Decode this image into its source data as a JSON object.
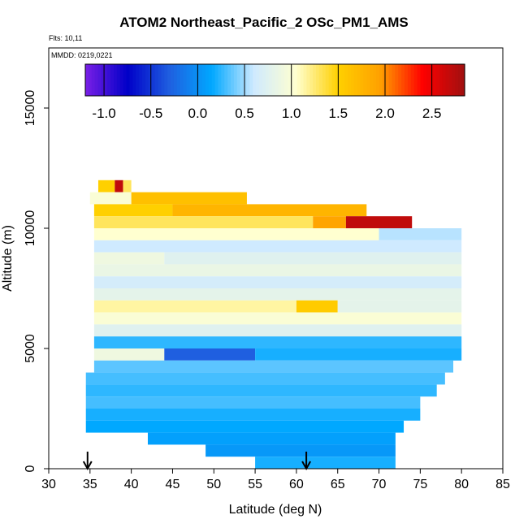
{
  "chart_data": {
    "type": "heatmap",
    "title": "ATOM2 Northeast_Pacific_2 OSc_PM1_AMS",
    "flights_label": "Flts: 10,11",
    "dates_label": "MMDD: 0219,0221",
    "xlabel": "Latitude (deg N)",
    "ylabel": "Altitude (m)",
    "xlim": [
      30,
      85
    ],
    "ylim": [
      0,
      17500
    ],
    "xticks": [
      30,
      35,
      40,
      45,
      50,
      55,
      60,
      65,
      70,
      75,
      80,
      85
    ],
    "yticks": [
      0,
      5000,
      10000,
      15000
    ],
    "colorbar": {
      "range": [
        -1.2,
        2.85
      ],
      "ticks": [
        -1.0,
        -0.5,
        0.0,
        0.5,
        1.0,
        1.5,
        2.0,
        2.5
      ],
      "tick_labels": [
        "-1.0",
        "-0.5",
        "0.0",
        "0.5",
        "1.0",
        "1.5",
        "2.0",
        "2.5"
      ],
      "colors": [
        "#7a1fe6",
        "#0000c8",
        "#1f5fe0",
        "#00a8ff",
        "#cfeaff",
        "#ffffd0",
        "#ffd000",
        "#ffa000",
        "#ff0000",
        "#a01010"
      ]
    },
    "flight_markers_lat": [
      34.7,
      61.2
    ],
    "grid": false,
    "bands": [
      {
        "alt": [
          11500,
          12000
        ],
        "segments": [
          [
            36,
            38,
            1.5
          ],
          [
            38,
            39,
            2.7
          ],
          [
            39,
            40,
            1.3
          ]
        ]
      },
      {
        "alt": [
          11000,
          11500
        ],
        "segments": [
          [
            35,
            40,
            1.0
          ],
          [
            40,
            54,
            1.65
          ]
        ]
      },
      {
        "alt": [
          10500,
          11000
        ],
        "segments": [
          [
            35.5,
            45,
            1.5
          ],
          [
            45,
            68.5,
            1.75
          ]
        ]
      },
      {
        "alt": [
          10000,
          10500
        ],
        "segments": [
          [
            35.5,
            62,
            1.3
          ],
          [
            62,
            66,
            1.9
          ],
          [
            66,
            74,
            2.7
          ]
        ]
      },
      {
        "alt": [
          9500,
          10000
        ],
        "segments": [
          [
            35.5,
            70,
            1.05
          ],
          [
            70,
            80,
            0.55
          ]
        ]
      },
      {
        "alt": [
          9000,
          9500
        ],
        "segments": [
          [
            35.5,
            80,
            0.6
          ]
        ]
      },
      {
        "alt": [
          8500,
          9000
        ],
        "segments": [
          [
            35.5,
            44,
            0.9
          ],
          [
            44,
            80,
            0.75
          ]
        ]
      },
      {
        "alt": [
          8000,
          8500
        ],
        "segments": [
          [
            35.5,
            80,
            0.85
          ]
        ]
      },
      {
        "alt": [
          7500,
          8000
        ],
        "segments": [
          [
            35.5,
            80,
            0.65
          ]
        ]
      },
      {
        "alt": [
          7000,
          7500
        ],
        "segments": [
          [
            35.5,
            80,
            0.8
          ]
        ]
      },
      {
        "alt": [
          6500,
          7000
        ],
        "segments": [
          [
            35.5,
            60,
            1.15
          ],
          [
            60,
            65,
            1.55
          ],
          [
            65,
            80,
            0.8
          ]
        ]
      },
      {
        "alt": [
          6000,
          6500
        ],
        "segments": [
          [
            35.5,
            80,
            1.0
          ]
        ]
      },
      {
        "alt": [
          5500,
          6000
        ],
        "segments": [
          [
            35.5,
            80,
            0.75
          ]
        ]
      },
      {
        "alt": [
          5000,
          5500
        ],
        "segments": [
          [
            35.5,
            80,
            0.25
          ]
        ]
      },
      {
        "alt": [
          4500,
          5000
        ],
        "segments": [
          [
            35.5,
            44,
            0.9
          ],
          [
            44,
            55,
            -0.3
          ],
          [
            55,
            80,
            0.2
          ]
        ]
      },
      {
        "alt": [
          4000,
          4500
        ],
        "segments": [
          [
            35.5,
            79,
            0.35
          ]
        ]
      },
      {
        "alt": [
          3500,
          4000
        ],
        "segments": [
          [
            34.5,
            78,
            0.3
          ]
        ]
      },
      {
        "alt": [
          3000,
          3500
        ],
        "segments": [
          [
            34.5,
            77,
            0.25
          ]
        ]
      },
      {
        "alt": [
          2500,
          3000
        ],
        "segments": [
          [
            34.5,
            75,
            0.3
          ]
        ]
      },
      {
        "alt": [
          2000,
          2500
        ],
        "segments": [
          [
            34.5,
            75,
            0.2
          ]
        ]
      },
      {
        "alt": [
          1500,
          2000
        ],
        "segments": [
          [
            34.5,
            73,
            0.15
          ]
        ]
      },
      {
        "alt": [
          1000,
          1500
        ],
        "segments": [
          [
            42,
            72,
            0.1
          ]
        ]
      },
      {
        "alt": [
          500,
          1000
        ],
        "segments": [
          [
            49,
            72,
            0.05
          ]
        ]
      },
      {
        "alt": [
          0,
          500
        ],
        "segments": [
          [
            55,
            72,
            0.2
          ]
        ]
      }
    ]
  }
}
